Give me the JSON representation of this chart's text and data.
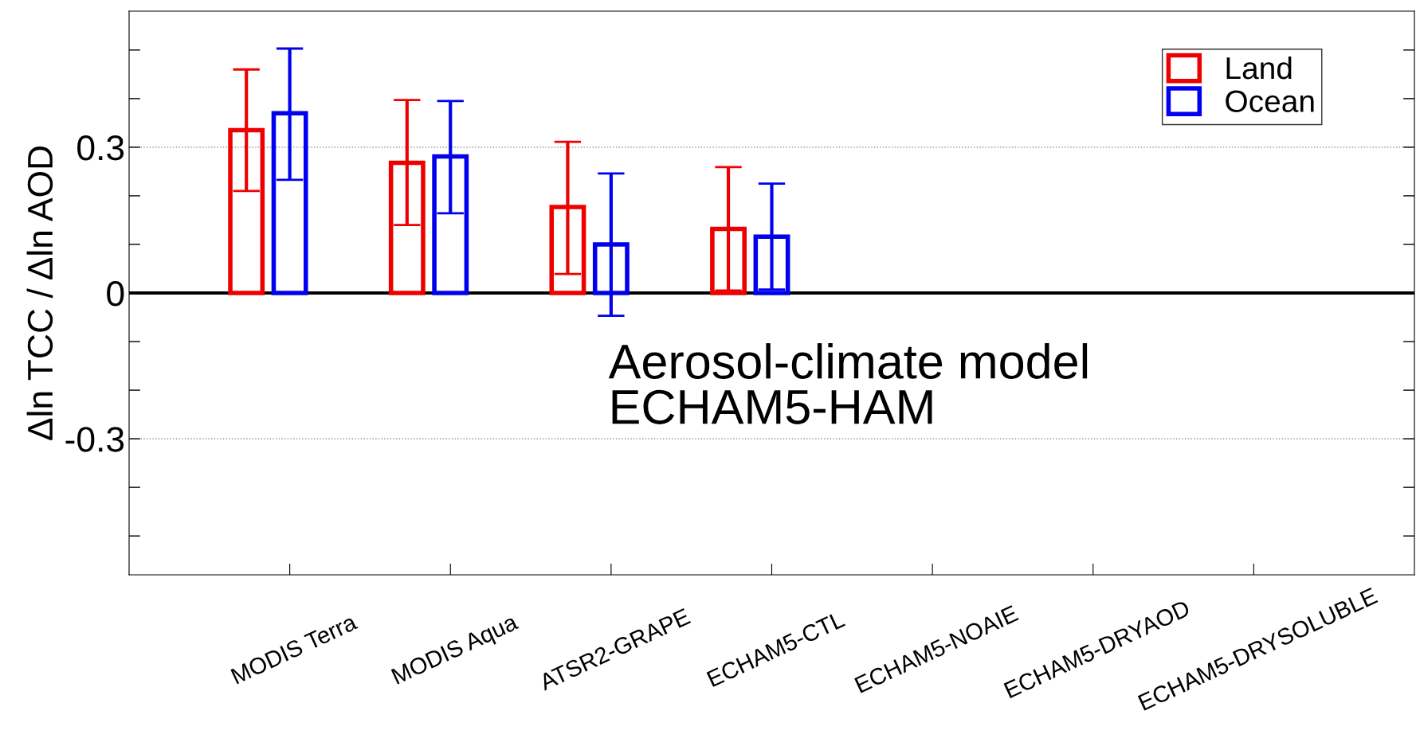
{
  "chart_data": {
    "type": "bar",
    "ylabel": "Δln TCC / Δln AOD",
    "categories": [
      "MODIS Terra",
      "MODIS Aqua",
      "ATSR2-GRAPE",
      "ECHAM5-CTL",
      "ECHAM5-NOAIE",
      "ECHAM5-DRYAOD",
      "ECHAM5-DRYSOLUBLE"
    ],
    "series": [
      {
        "name": "Land",
        "color": "#ee0000",
        "values": [
          0.335,
          0.268,
          0.177,
          0.132,
          null,
          null,
          null
        ],
        "errors": [
          [
            0.21,
            0.46
          ],
          [
            0.14,
            0.397
          ],
          [
            0.039,
            0.311
          ],
          [
            0.005,
            0.259
          ],
          null,
          null,
          null
        ]
      },
      {
        "name": "Ocean",
        "color": "#0000ee",
        "values": [
          0.37,
          0.281,
          0.1,
          0.116,
          null,
          null,
          null
        ],
        "errors": [
          [
            0.233,
            0.503
          ],
          [
            0.164,
            0.395
          ],
          [
            -0.047,
            0.246
          ],
          [
            0.007,
            0.225
          ],
          null,
          null,
          null
        ]
      }
    ],
    "ylim": [
      -0.58,
      0.58
    ],
    "yticks": [
      {
        "value": -0.5,
        "label": null
      },
      {
        "value": -0.4,
        "label": null
      },
      -0.3,
      {
        "value": -0.2,
        "label": null
      },
      {
        "value": -0.1,
        "label": null
      },
      0,
      {
        "value": 0.1,
        "label": null
      },
      {
        "value": 0.2,
        "label": null
      },
      0.3,
      {
        "value": 0.4,
        "label": null
      },
      {
        "value": 0.5,
        "label": null
      }
    ],
    "ref_lines": [
      {
        "axis": "y",
        "value": 0,
        "color": "#000000",
        "line_style": "solid"
      },
      {
        "axis": "y",
        "value": 0.3,
        "color": "#808080",
        "line_style": "dotted"
      },
      {
        "axis": "y",
        "value": -0.3,
        "color": "#808080",
        "line_style": "dotted"
      }
    ],
    "annotations": [
      "Aerosol-climate model\nECHAM5-HAM"
    ],
    "legend": "top right",
    "grid": false
  }
}
